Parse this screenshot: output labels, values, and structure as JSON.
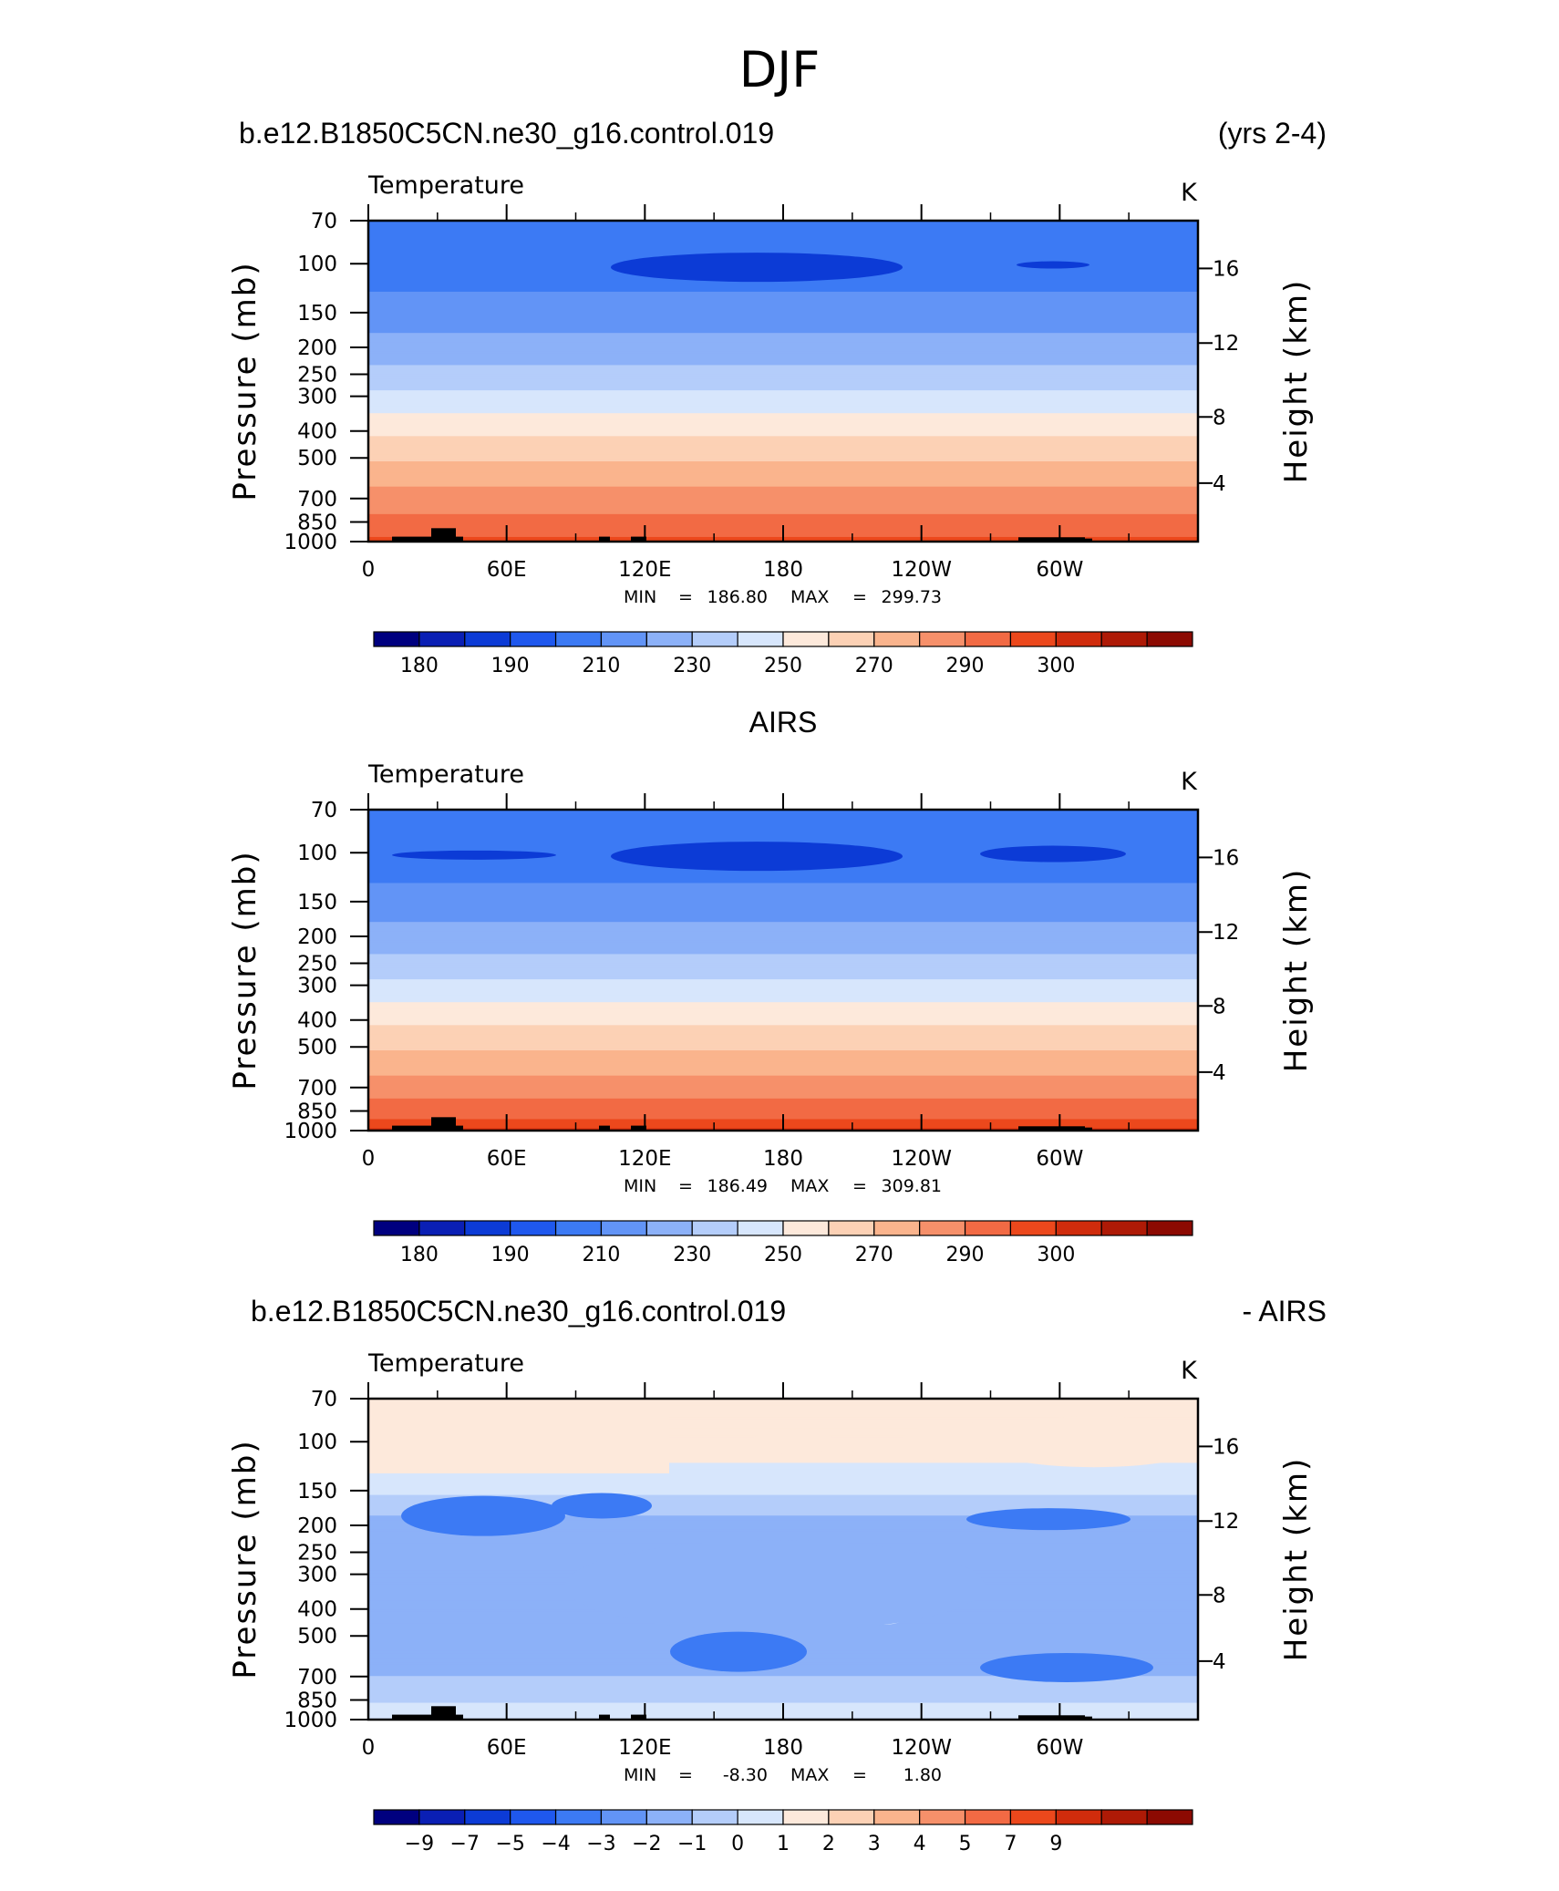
{
  "page_title": "DJF",
  "colors": {
    "temp_levels": [
      "#00007f",
      "#0a1fb4",
      "#0c3bd6",
      "#1f58ee",
      "#3c7af4",
      "#6294f6",
      "#8cb1f8",
      "#b4cdfa",
      "#d7e6fc",
      "#fde9db",
      "#fcd1b5",
      "#fab48d",
      "#f6906a",
      "#f26a44",
      "#ec481c",
      "#d02c0c",
      "#ae1a06",
      "#8c0a02"
    ],
    "diff_levels": [
      "#00007f",
      "#0a1fb4",
      "#0c3bd6",
      "#1f58ee",
      "#3c7af4",
      "#6294f6",
      "#8cb1f8",
      "#b4cdfa",
      "#d7e6fc",
      "#fde9db",
      "#fcd1b5",
      "#fab48d",
      "#f6906a",
      "#f26a44",
      "#ec481c",
      "#d02c0c",
      "#ae1a06",
      "#8c0a02"
    ],
    "topography": "#000000"
  },
  "panels": [
    {
      "id": "model",
      "header_left": "b.e12.B1850C5CN.ne30_g16.control.019",
      "header_right": "(yrs 2-4)",
      "header_center": "",
      "variable": "Temperature",
      "units": "K",
      "ylabel": "Pressure (mb)",
      "y2label": "Height (km)",
      "min_label": "MIN",
      "min_value": "186.80",
      "max_label": "MAX",
      "max_value": "299.73",
      "colorbar_labels": [
        "180",
        "190",
        "210",
        "230",
        "250",
        "270",
        "290",
        "300"
      ]
    },
    {
      "id": "obs",
      "header_left": "",
      "header_right": "",
      "header_center": "AIRS",
      "variable": "Temperature",
      "units": "K",
      "ylabel": "Pressure (mb)",
      "y2label": "Height (km)",
      "min_label": "MIN",
      "min_value": "186.49",
      "max_label": "MAX",
      "max_value": "309.81",
      "colorbar_labels": [
        "180",
        "190",
        "210",
        "230",
        "250",
        "270",
        "290",
        "300"
      ]
    },
    {
      "id": "diff",
      "header_left": "b.e12.B1850C5CN.ne30_g16.control.019",
      "header_right": "- AIRS",
      "header_center": "",
      "variable": "Temperature",
      "units": "K",
      "ylabel": "Pressure (mb)",
      "y2label": "Height (km)",
      "min_label": "MIN",
      "min_value": "-8.30",
      "max_label": "MAX",
      "max_value": "1.80",
      "colorbar_labels": [
        "−9",
        "−7",
        "−5",
        "−4",
        "−3",
        "−2",
        "−1",
        "0",
        "1",
        "2",
        "3",
        "4",
        "5",
        "7",
        "9"
      ]
    }
  ],
  "chart_data": [
    {
      "type": "heatmap",
      "title": "b.e12.B1850C5CN.ne30_g16.control.019 (yrs 2-4) Temperature",
      "xlabel": "",
      "ylabel": "Pressure (mb)",
      "y2label": "Height (km)",
      "x_ticks": [
        "0",
        "60E",
        "120E",
        "180",
        "120W",
        "60W"
      ],
      "y_ticks": [
        "70",
        "100",
        "150",
        "200",
        "250",
        "300",
        "400",
        "500",
        "700",
        "850",
        "1000"
      ],
      "y2_ticks": [
        "4",
        "8",
        "12",
        "16"
      ],
      "ylim": [
        1000,
        70
      ],
      "levels": [
        175,
        180,
        185,
        190,
        200,
        210,
        220,
        230,
        240,
        250,
        260,
        270,
        280,
        290,
        295,
        300,
        305
      ],
      "profile_pressure": [
        70,
        100,
        150,
        200,
        250,
        300,
        400,
        500,
        700,
        850,
        1000
      ],
      "profile_temperature": [
        198,
        193,
        205,
        214,
        223,
        233,
        248,
        259,
        274,
        283,
        292
      ],
      "min": 186.8,
      "max": 299.73,
      "units": "K"
    },
    {
      "type": "heatmap",
      "title": "AIRS Temperature",
      "xlabel": "",
      "ylabel": "Pressure (mb)",
      "y2label": "Height (km)",
      "x_ticks": [
        "0",
        "60E",
        "120E",
        "180",
        "120W",
        "60W"
      ],
      "y_ticks": [
        "70",
        "100",
        "150",
        "200",
        "250",
        "300",
        "400",
        "500",
        "700",
        "850",
        "1000"
      ],
      "y2_ticks": [
        "4",
        "8",
        "12",
        "16"
      ],
      "ylim": [
        1000,
        70
      ],
      "levels": [
        175,
        180,
        185,
        190,
        200,
        210,
        220,
        230,
        240,
        250,
        260,
        270,
        280,
        290,
        295,
        300,
        305
      ],
      "profile_pressure": [
        70,
        100,
        150,
        200,
        250,
        300,
        400,
        500,
        700,
        850,
        1000
      ],
      "profile_temperature": [
        197,
        192,
        205,
        214,
        223,
        233,
        248,
        259,
        275,
        285,
        296
      ],
      "min": 186.49,
      "max": 309.81,
      "units": "K"
    },
    {
      "type": "heatmap",
      "title": "b.e12.B1850C5CN.ne30_g16.control.019 - AIRS Temperature",
      "xlabel": "",
      "ylabel": "Pressure (mb)",
      "y2label": "Height (km)",
      "x_ticks": [
        "0",
        "60E",
        "120E",
        "180",
        "120W",
        "60W"
      ],
      "y_ticks": [
        "70",
        "100",
        "150",
        "200",
        "250",
        "300",
        "400",
        "500",
        "700",
        "850",
        "1000"
      ],
      "y2_ticks": [
        "4",
        "8",
        "12",
        "16"
      ],
      "ylim": [
        1000,
        70
      ],
      "levels": [
        -10,
        -9,
        -7,
        -5,
        -4,
        -3,
        -2,
        -1,
        0,
        1,
        2,
        3,
        4,
        5,
        7,
        9,
        10
      ],
      "profile_pressure": [
        70,
        100,
        150,
        200,
        250,
        300,
        400,
        500,
        700,
        850,
        1000
      ],
      "profile_difference": [
        0.5,
        0.6,
        -0.8,
        -2.5,
        -2.2,
        -2.0,
        -2.1,
        -2.4,
        -2.0,
        -1.5,
        -0.8
      ],
      "min": -8.3,
      "max": 1.8,
      "units": "K"
    }
  ]
}
